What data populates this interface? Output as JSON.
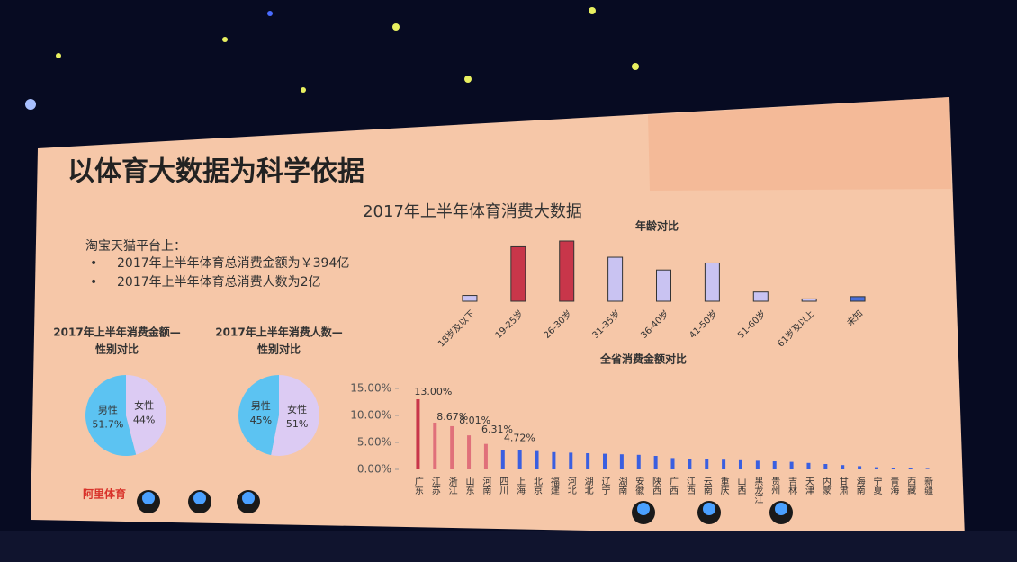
{
  "slide": {
    "title": "以体育大数据为科学依据",
    "subtitle": "2017年上半年体育消费大数据",
    "intro": "淘宝天猫平台上：",
    "bullets": [
      "2017年上半年体育总消费金额为￥394亿",
      "2017年上半年体育总消费人数为2亿"
    ],
    "logo": "阿里体育"
  },
  "chart_data": [
    {
      "type": "bar",
      "title": [
        "年龄对比"
      ],
      "categories": [
        "18岁及以下",
        "19-25岁",
        "26-30岁",
        "31-35岁",
        "36-40岁",
        "41-50岁",
        "51-60岁",
        "61岁及以上",
        "未知"
      ],
      "values": [
        5,
        47,
        52,
        38,
        27,
        33,
        8,
        2,
        4
      ],
      "colors": [
        "#c9c3f2",
        "#c8364a",
        "#c8364a",
        "#c9c3f2",
        "#c9c3f2",
        "#c9c3f2",
        "#c9c3f2",
        "#c9c3f2",
        "#4a6fd8"
      ]
    },
    {
      "type": "pie",
      "title": [
        "2017年上半年消费金额—",
        "性别对比"
      ],
      "categories": [
        "男性",
        "女性"
      ],
      "values": [
        51.7,
        44
      ],
      "value_labels": [
        "51.7%",
        "44%"
      ],
      "colors": [
        "#5cc3f2",
        "#dccbf3"
      ]
    },
    {
      "type": "pie",
      "title": [
        "2017年上半年消费人数—",
        "性别对比"
      ],
      "categories": [
        "男性",
        "女性"
      ],
      "values": [
        45,
        51
      ],
      "value_labels": [
        "45%",
        "51%"
      ],
      "colors": [
        "#5cc3f2",
        "#dccbf3"
      ]
    },
    {
      "type": "column",
      "title": [
        "全省消费金额对比"
      ],
      "categories": [
        "广东",
        "江苏",
        "浙江",
        "山东",
        "河南",
        "四川",
        "上海",
        "北京",
        "福建",
        "河北",
        "湖北",
        "辽宁",
        "湖南",
        "安徽",
        "陕西",
        "广西",
        "江西",
        "云南",
        "重庆",
        "山西",
        "黑龙江",
        "贵州",
        "吉林",
        "天津",
        "内蒙",
        "甘肃",
        "海南",
        "宁夏",
        "青海",
        "西藏",
        "新疆"
      ],
      "values": [
        13.0,
        8.67,
        8.01,
        6.31,
        4.72,
        3.5,
        3.5,
        3.4,
        3.2,
        3.1,
        3.0,
        2.9,
        2.8,
        2.7,
        2.5,
        2.1,
        2.0,
        1.9,
        1.8,
        1.7,
        1.6,
        1.5,
        1.4,
        1.2,
        1.0,
        0.8,
        0.6,
        0.4,
        0.3,
        0.2,
        0.1
      ],
      "value_labels": [
        "13.00%",
        "8.67%",
        "8.01%",
        "6.31%",
        "4.72%",
        null,
        null,
        null,
        null,
        null,
        null,
        null,
        null,
        null,
        null,
        null,
        null,
        null,
        null,
        null,
        null,
        null,
        null,
        null,
        null,
        null,
        null,
        null,
        null,
        null,
        null
      ],
      "colors": [
        "#c8364a",
        "#e0707a",
        "#e0707a",
        "#e0707a",
        "#e0707a",
        "#3a5fe0",
        "#3a5fe0",
        "#3a5fe0",
        "#3a5fe0",
        "#3a5fe0",
        "#3a5fe0",
        "#3a5fe0",
        "#3a5fe0",
        "#3a5fe0",
        "#3a5fe0",
        "#3a5fe0",
        "#3a5fe0",
        "#3a5fe0",
        "#3a5fe0",
        "#3a5fe0",
        "#3a5fe0",
        "#3a5fe0",
        "#3a5fe0",
        "#3a5fe0",
        "#3a5fe0",
        "#3a5fe0",
        "#3a5fe0",
        "#3a5fe0",
        "#3a5fe0",
        "#3a5fe0",
        "#3a5fe0"
      ],
      "ylim": [
        0,
        15
      ],
      "yticks": [
        {
          "value": 0,
          "label": "0.00%"
        },
        {
          "value": 5,
          "label": "5.00%"
        },
        {
          "value": 10,
          "label": "10.00%"
        },
        {
          "value": 15,
          "label": "15.00%"
        }
      ]
    }
  ]
}
